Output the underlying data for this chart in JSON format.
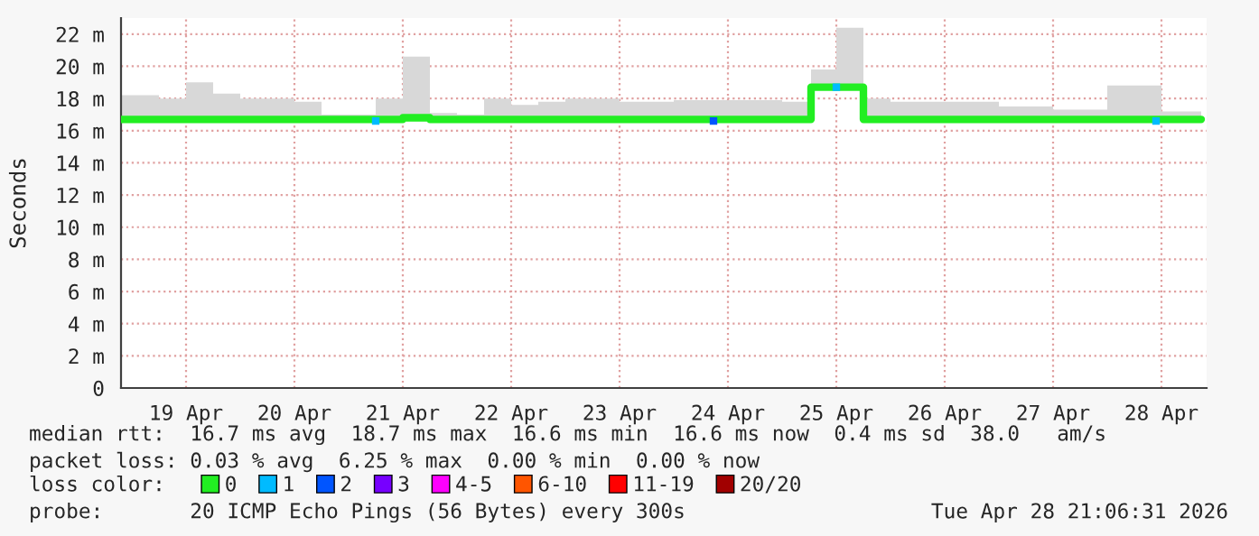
{
  "chart_data": {
    "type": "step",
    "ylabel": "Seconds",
    "xlim": [
      "2026-04-18T21:36",
      "2026-04-28T22:00"
    ],
    "xticks": [
      {
        "value": "2026-04-19T12:00",
        "label": "19 Apr"
      },
      {
        "value": "2026-04-20T12:00",
        "label": "20 Apr"
      },
      {
        "value": "2026-04-21T12:00",
        "label": "21 Apr"
      },
      {
        "value": "2026-04-22T12:00",
        "label": "22 Apr"
      },
      {
        "value": "2026-04-23T12:00",
        "label": "23 Apr"
      },
      {
        "value": "2026-04-24T12:00",
        "label": "24 Apr"
      },
      {
        "value": "2026-04-25T12:00",
        "label": "25 Apr"
      },
      {
        "value": "2026-04-26T12:00",
        "label": "26 Apr"
      },
      {
        "value": "2026-04-27T12:00",
        "label": "27 Apr"
      },
      {
        "value": "2026-04-28T12:00",
        "label": "28 Apr"
      }
    ],
    "ylim": [
      0,
      23
    ],
    "yticks": [
      0,
      {
        "value": 2,
        "label": "2 m"
      },
      {
        "value": 4,
        "label": "4 m"
      },
      {
        "value": 6,
        "label": "6 m"
      },
      {
        "value": 8,
        "label": "8 m"
      },
      {
        "value": 10,
        "label": "10 m"
      },
      {
        "value": 12,
        "label": "12 m"
      },
      {
        "value": 14,
        "label": "14 m"
      },
      {
        "value": 16,
        "label": "16 m"
      },
      {
        "value": 18,
        "label": "18 m"
      },
      {
        "value": 20,
        "label": "20 m"
      },
      {
        "value": 22,
        "label": "22 m"
      }
    ],
    "grid": true,
    "legend": "bottom left",
    "series": [
      {
        "name": "0",
        "color": "#22ee22",
        "x": [
          "2026-04-18T21:36",
          "2026-04-19T06:00",
          "2026-04-19T12:00",
          "2026-04-19T18:00",
          "2026-04-20T00:00",
          "2026-04-20T06:00",
          "2026-04-20T12:00",
          "2026-04-20T18:00",
          "2026-04-21T00:00",
          "2026-04-21T06:00",
          "2026-04-21T12:00",
          "2026-04-21T18:00",
          "2026-04-22T00:00",
          "2026-04-22T06:00",
          "2026-04-22T12:00",
          "2026-04-22T18:00",
          "2026-04-23T00:00",
          "2026-04-23T12:00",
          "2026-04-24T00:00",
          "2026-04-24T12:00",
          "2026-04-25T00:00",
          "2026-04-25T06:24",
          "2026-04-25T12:00",
          "2026-04-25T18:00",
          "2026-04-26T00:00",
          "2026-04-26T12:00",
          "2026-04-27T00:00",
          "2026-04-27T12:00",
          "2026-04-28T00:00",
          "2026-04-28T12:00",
          "2026-04-28T20:48"
        ],
        "values": [
          16.7,
          16.7,
          16.7,
          16.7,
          16.7,
          16.7,
          16.7,
          16.7,
          16.7,
          16.7,
          16.8,
          16.7,
          16.7,
          16.7,
          16.7,
          16.7,
          16.7,
          16.7,
          16.7,
          16.7,
          16.7,
          18.7,
          18.7,
          16.7,
          16.7,
          16.7,
          16.7,
          16.7,
          16.7,
          16.7,
          16.7
        ],
        "lower": [
          16.6,
          16.6,
          16.6,
          16.6,
          16.6,
          16.6,
          16.6,
          16.6,
          16.6,
          16.6,
          16.6,
          16.6,
          16.6,
          16.6,
          16.6,
          16.6,
          16.6,
          16.6,
          16.6,
          16.6,
          16.6,
          18.6,
          18.6,
          16.6,
          16.6,
          16.6,
          16.6,
          16.6,
          16.6,
          16.6,
          16.6
        ],
        "upper": [
          18.2,
          18.0,
          19.0,
          18.3,
          18.0,
          18.0,
          17.8,
          17.0,
          17.0,
          18.0,
          20.6,
          17.1,
          17.0,
          18.0,
          17.6,
          17.8,
          18.0,
          17.8,
          17.9,
          17.9,
          17.8,
          19.8,
          22.4,
          18.0,
          17.8,
          17.8,
          17.5,
          17.3,
          18.8,
          17.2,
          16.9
        ]
      },
      {
        "name": "1",
        "type": "scatter",
        "color": "#00bbff",
        "x": [
          "2026-04-21T06:00",
          "2026-04-25T12:00",
          "2026-04-28T10:48"
        ],
        "values": [
          16.6,
          18.7,
          16.6
        ]
      },
      {
        "name": "2",
        "type": "scatter",
        "color": "#0055ff",
        "x": [
          "2026-04-24T08:48"
        ],
        "values": [
          16.6
        ]
      },
      {
        "name": "3",
        "type": "scatter",
        "color": "#7700ff"
      },
      {
        "name": "4-5",
        "type": "scatter",
        "color": "#ff00ff"
      },
      {
        "name": "6-10",
        "type": "scatter",
        "color": "#ff5500"
      },
      {
        "name": "11-19",
        "type": "scatter",
        "color": "#ff0000"
      },
      {
        "name": "20/20",
        "type": "scatter",
        "color": "#a10000"
      }
    ],
    "annotations": [
      "median rtt:  16.7 ms avg  18.7 ms max  16.6 ms min  16.6 ms now  0.4 ms sd  38.0   am/s",
      "packet loss: 0.03 % avg  6.25 % max  0.00 % min  0.00 % now",
      "loss color:",
      "probe:       20 ICMP Echo Pings (56 Bytes) every 300s",
      "Tue Apr 28 21:06:31 2026"
    ]
  }
}
